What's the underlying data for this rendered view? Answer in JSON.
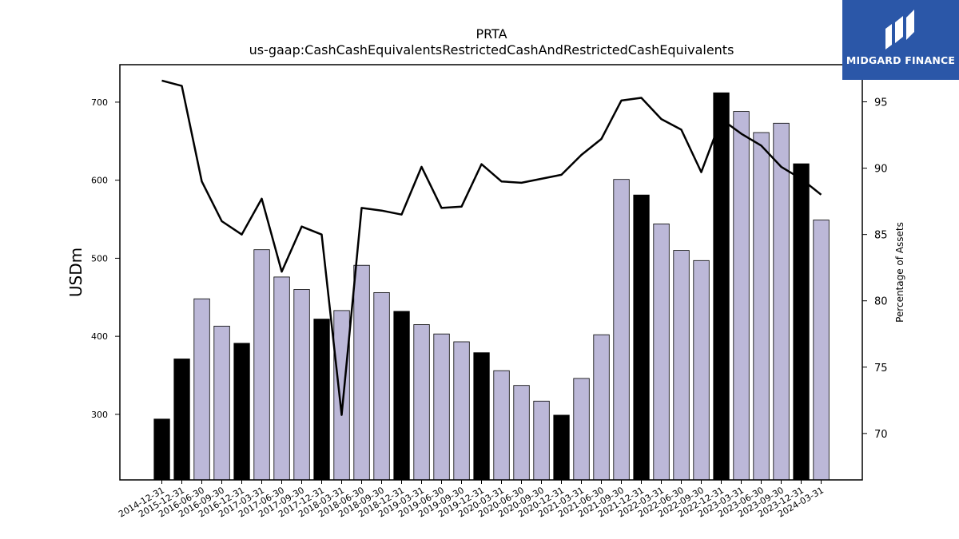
{
  "logo": {
    "text": "MIDGARD FINANCE",
    "icon": "midgard-logo-icon",
    "bg_color": "#2b57a8"
  },
  "chart_data": {
    "type": "bar",
    "title": "PRTA",
    "subtitle": "us-gaap:CashCashEquivalentsRestrictedCashAndRestrictedCashEquivalents",
    "ylabel": "USDm",
    "y2label": "Percentage of Assets",
    "ylim": [
      216,
      748
    ],
    "y2lim": [
      66.5,
      97.8
    ],
    "yticks": [
      300,
      400,
      500,
      600,
      700
    ],
    "y2ticks": [
      70,
      75,
      80,
      85,
      90,
      95
    ],
    "grid": false,
    "colors": {
      "annual": "#000000",
      "quarterly": "#bcb8d8",
      "line": "#000000"
    },
    "categories": [
      "2014-12-31",
      "2015-12-31",
      "2016-06-30",
      "2016-09-30",
      "2016-12-31",
      "2017-03-31",
      "2017-06-30",
      "2017-09-30",
      "2017-12-31",
      "2018-03-31",
      "2018-06-30",
      "2018-09-30",
      "2018-12-31",
      "2019-03-31",
      "2019-06-30",
      "2019-09-30",
      "2019-12-31",
      "2020-03-31",
      "2020-06-30",
      "2020-09-30",
      "2020-12-31",
      "2021-03-31",
      "2021-06-30",
      "2021-09-30",
      "2021-12-31",
      "2022-03-31",
      "2022-06-30",
      "2022-09-30",
      "2022-12-31",
      "2023-03-31",
      "2023-06-30",
      "2023-09-30",
      "2023-12-31",
      "2024-03-31"
    ],
    "series": [
      {
        "values": [
          294,
          371,
          448,
          413,
          391,
          511,
          476,
          460,
          422,
          433,
          491,
          456,
          432,
          415,
          403,
          393,
          379,
          356,
          337,
          317,
          299,
          346,
          402,
          601,
          581,
          544,
          510,
          497,
          712,
          688,
          661,
          673,
          621,
          549
        ]
      },
      {
        "axis": "right",
        "type": "line",
        "values": [
          96.6,
          96.2,
          89.0,
          86.0,
          85.0,
          87.7,
          82.2,
          85.6,
          85.0,
          71.4,
          87.0,
          86.8,
          86.5,
          90.1,
          87.0,
          87.1,
          90.3,
          89.0,
          88.9,
          89.2,
          89.5,
          91.0,
          92.2,
          95.1,
          95.3,
          93.7,
          92.9,
          89.7,
          93.7,
          92.6,
          91.7,
          90.1,
          89.2,
          88.0
        ]
      }
    ]
  }
}
